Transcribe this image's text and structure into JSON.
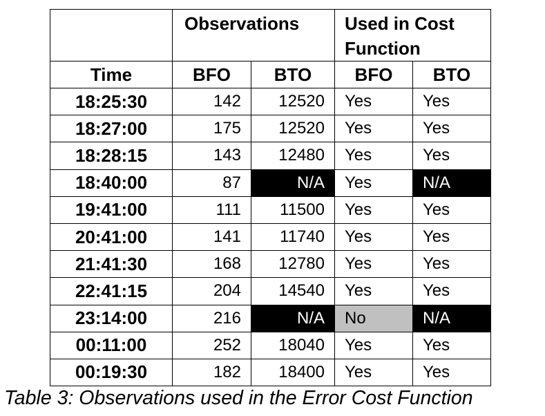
{
  "header": {
    "group_1": "Observations",
    "group_2": "Used in Cost Function",
    "columns": [
      "Time",
      "BFO",
      "BTO",
      "BFO",
      "BTO"
    ]
  },
  "table": {
    "rows": [
      [
        "18:25:30",
        142,
        12520,
        "Yes",
        "Yes"
      ],
      [
        "18:27:00",
        175,
        12520,
        "Yes",
        "Yes"
      ],
      [
        "18:28:15",
        143,
        12480,
        "Yes",
        "Yes"
      ],
      [
        "18:40:00",
        87,
        "N/A",
        "Yes",
        "N/A"
      ],
      [
        "19:41:00",
        111,
        11500,
        "Yes",
        "Yes"
      ],
      [
        "20:41:00",
        141,
        11740,
        "Yes",
        "Yes"
      ],
      [
        "21:41:30",
        168,
        12780,
        "Yes",
        "Yes"
      ],
      [
        "22:41:15",
        204,
        14540,
        "Yes",
        "Yes"
      ],
      [
        "23:14:00",
        216,
        "N/A",
        "No",
        "N/A"
      ],
      [
        "00:11:00",
        252,
        18040,
        "Yes",
        "Yes"
      ],
      [
        "00:19:30",
        182,
        18400,
        "Yes",
        "Yes"
      ]
    ]
  },
  "caption": "Table 3: Observations used in the Error Cost Function"
}
